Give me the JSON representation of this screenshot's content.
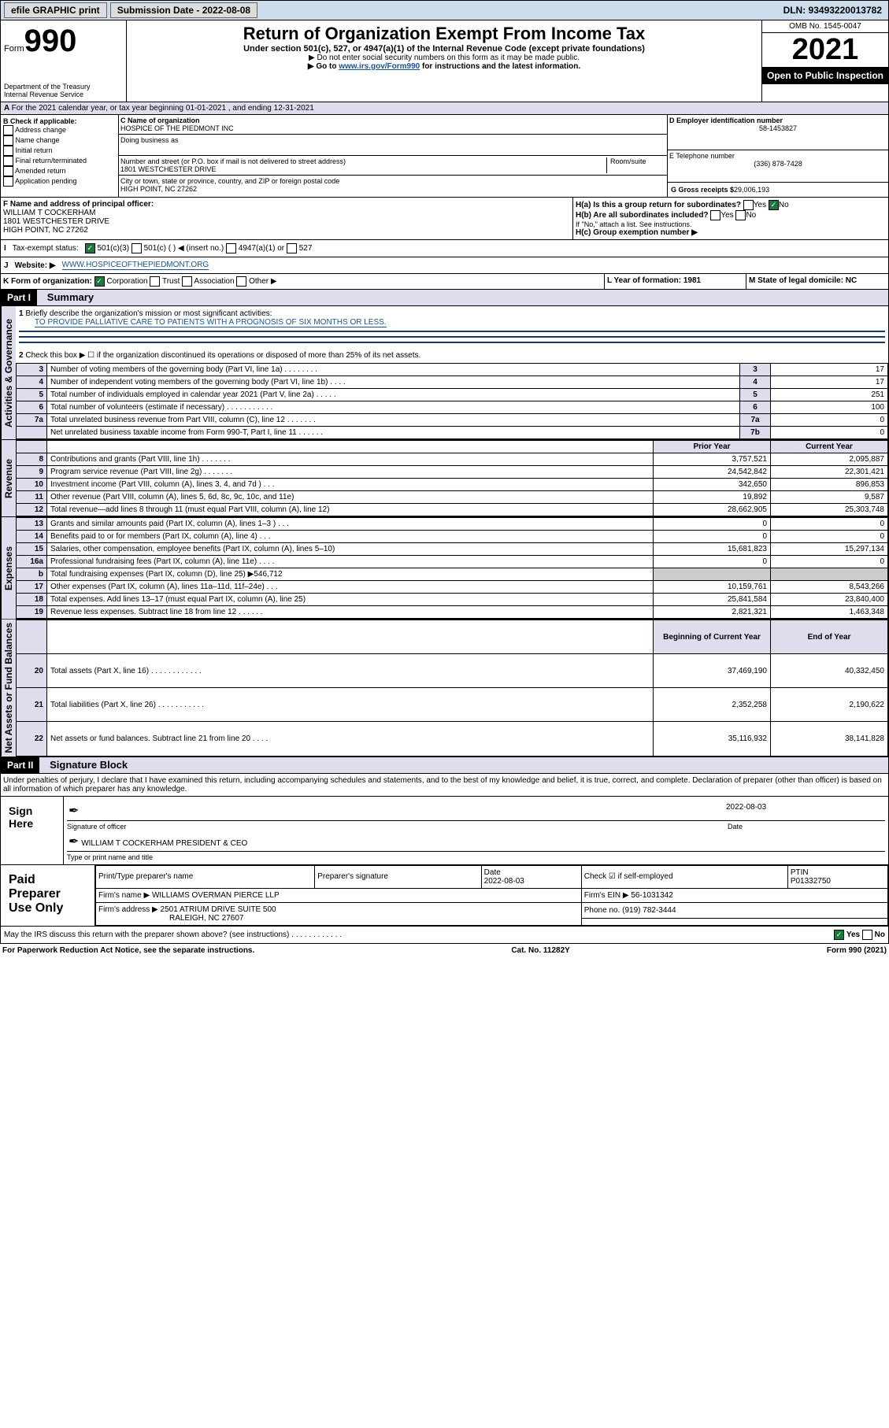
{
  "topbar": {
    "efile": "efile GRAPHIC print",
    "subdate_label": "Submission Date - 2022-08-08",
    "dln": "DLN: 93493220013782"
  },
  "header": {
    "form_prefix": "Form",
    "form_no": "990",
    "dept": "Department of the Treasury",
    "irs": "Internal Revenue Service",
    "title": "Return of Organization Exempt From Income Tax",
    "subtitle": "Under section 501(c), 527, or 4947(a)(1) of the Internal Revenue Code (except private foundations)",
    "note1": "▶ Do not enter social security numbers on this form as it may be made public.",
    "note2_pre": "▶ Go to ",
    "note2_link": "www.irs.gov/Form990",
    "note2_post": " for instructions and the latest information.",
    "omb": "OMB No. 1545-0047",
    "year": "2021",
    "openpub": "Open to Public Inspection"
  },
  "a_line": "For the 2021 calendar year, or tax year beginning 01-01-2021   , and ending 12-31-2021",
  "b": {
    "label": "B Check if applicable:",
    "opts": [
      "Address change",
      "Name change",
      "Initial return",
      "Final return/terminated",
      "Amended return",
      "Application pending"
    ]
  },
  "c": {
    "name_label": "C Name of organization",
    "name": "HOSPICE OF THE PIEDMONT INC",
    "dba_label": "Doing business as",
    "dba": "",
    "addr_label": "Number and street (or P.O. box if mail is not delivered to street address)",
    "room": "Room/suite",
    "addr": "1801 WESTCHESTER DRIVE",
    "city_label": "City or town, state or province, country, and ZIP or foreign postal code",
    "city": "HIGH POINT, NC  27262"
  },
  "d": {
    "label": "D Employer identification number",
    "val": "58-1453827"
  },
  "e": {
    "label": "E Telephone number",
    "val": "(336) 878-7428"
  },
  "g": {
    "label": "G Gross receipts $",
    "val": "29,006,193"
  },
  "f": {
    "label": "F Name and address of principal officer:",
    "name": "WILLIAM T COCKERHAM",
    "addr1": "1801 WESTCHESTER DRIVE",
    "addr2": "HIGH POINT, NC  27262"
  },
  "h": {
    "a_label": "H(a)  Is this a group return for subordinates?",
    "a_yes": "Yes",
    "a_no": "No",
    "b_label": "H(b)  Are all subordinates included?",
    "b_yes": "Yes",
    "b_no": "No",
    "b_note": "If \"No,\" attach a list. See instructions.",
    "c_label": "H(c)  Group exemption number ▶"
  },
  "i": {
    "label": "Tax-exempt status:",
    "opts": [
      "501(c)(3)",
      "501(c) (  ) ◀ (insert no.)",
      "4947(a)(1) or",
      "527"
    ]
  },
  "j": {
    "label": "J",
    "text": "Website: ▶",
    "url": "WWW.HOSPICEOFTHEPIEDMONT.ORG"
  },
  "k": {
    "label": "K Form of organization:",
    "opts": [
      "Corporation",
      "Trust",
      "Association",
      "Other ▶"
    ]
  },
  "l": {
    "label": "L Year of formation: 1981"
  },
  "m": {
    "label": "M State of legal domicile: NC"
  },
  "part1": {
    "label": "Part I",
    "title": "Summary"
  },
  "summary": {
    "q1": "Briefly describe the organization's mission or most significant activities:",
    "q1v": "TO PROVIDE PALLIATIVE CARE TO PATIENTS WITH A PROGNOSIS OF SIX MONTHS OR LESS.",
    "q2": "Check this box ▶ ☐  if the organization discontinued its operations or disposed of more than 25% of its net assets.",
    "rows": [
      {
        "n": "3",
        "d": "Number of voting members of the governing body (Part VI, line 1a)   .    .    .    .    .    .    .    .",
        "b": "3",
        "v": "17"
      },
      {
        "n": "4",
        "d": "Number of independent voting members of the governing body (Part VI, line 1b)   .    .    .    .",
        "b": "4",
        "v": "17"
      },
      {
        "n": "5",
        "d": "Total number of individuals employed in calendar year 2021 (Part V, line 2a)   .    .    .    .    .",
        "b": "5",
        "v": "251"
      },
      {
        "n": "6",
        "d": "Total number of volunteers (estimate if necessary)   .    .    .    .    .    .    .    .    .    .    .",
        "b": "6",
        "v": "100"
      },
      {
        "n": "7a",
        "d": "Total unrelated business revenue from Part VIII, column (C), line 12   .    .    .    .    .    .    .",
        "b": "7a",
        "v": "0"
      },
      {
        "n": "",
        "d": "Net unrelated business taxable income from Form 990-T, Part I, line 11   .    .    .    .    .    .",
        "b": "7b",
        "v": "0"
      }
    ],
    "colhdr": {
      "prior": "Prior Year",
      "current": "Current Year"
    },
    "revenue": [
      {
        "n": "8",
        "d": "Contributions and grants (Part VIII, line 1h)   .    .    .    .    .    .    .",
        "p": "3,757,521",
        "c": "2,095,887"
      },
      {
        "n": "9",
        "d": "Program service revenue (Part VIII, line 2g)   .    .    .    .    .    .    .",
        "p": "24,542,842",
        "c": "22,301,421"
      },
      {
        "n": "10",
        "d": "Investment income (Part VIII, column (A), lines 3, 4, and 7d )   .    .    .",
        "p": "342,650",
        "c": "896,853"
      },
      {
        "n": "11",
        "d": "Other revenue (Part VIII, column (A), lines 5, 6d, 8c, 9c, 10c, and 11e)",
        "p": "19,892",
        "c": "9,587"
      },
      {
        "n": "12",
        "d": "Total revenue—add lines 8 through 11 (must equal Part VIII, column (A), line 12)",
        "p": "28,662,905",
        "c": "25,303,748"
      }
    ],
    "expenses": [
      {
        "n": "13",
        "d": "Grants and similar amounts paid (Part IX, column (A), lines 1–3 )   .    .    .",
        "p": "0",
        "c": "0"
      },
      {
        "n": "14",
        "d": "Benefits paid to or for members (Part IX, column (A), line 4)   .    .    .",
        "p": "0",
        "c": "0"
      },
      {
        "n": "15",
        "d": "Salaries, other compensation, employee benefits (Part IX, column (A), lines 5–10)",
        "p": "15,681,823",
        "c": "15,297,134"
      },
      {
        "n": "16a",
        "d": "Professional fundraising fees (Part IX, column (A), line 11e)   .    .    .    .",
        "p": "0",
        "c": "0"
      },
      {
        "n": "b",
        "d": "Total fundraising expenses (Part IX, column (D), line 25) ▶546,712",
        "grey": true
      },
      {
        "n": "17",
        "d": "Other expenses (Part IX, column (A), lines 11a–11d, 11f–24e)   .    .    .",
        "p": "10,159,761",
        "c": "8,543,266"
      },
      {
        "n": "18",
        "d": "Total expenses. Add lines 13–17 (must equal Part IX, column (A), line 25)",
        "p": "25,841,584",
        "c": "23,840,400"
      },
      {
        "n": "19",
        "d": "Revenue less expenses. Subtract line 18 from line 12   .    .    .    .    .    .",
        "p": "2,821,321",
        "c": "1,463,348"
      }
    ],
    "nethdr": {
      "begin": "Beginning of Current Year",
      "end": "End of Year"
    },
    "net": [
      {
        "n": "20",
        "d": "Total assets (Part X, line 16)   .    .    .    .    .    .    .    .    .    .    .    .",
        "p": "37,469,190",
        "c": "40,332,450"
      },
      {
        "n": "21",
        "d": "Total liabilities (Part X, line 26)   .    .    .    .    .    .    .    .    .    .    .",
        "p": "2,352,258",
        "c": "2,190,622"
      },
      {
        "n": "22",
        "d": "Net assets or fund balances. Subtract line 21 from line 20   .    .    .    .",
        "p": "35,116,932",
        "c": "38,141,828"
      }
    ]
  },
  "sidelabels": {
    "gov": "Activities & Governance",
    "rev": "Revenue",
    "exp": "Expenses",
    "net": "Net Assets or Fund Balances"
  },
  "part2": {
    "label": "Part II",
    "title": "Signature Block"
  },
  "penalty": "Under penalties of perjury, I declare that I have examined this return, including accompanying schedules and statements, and to the best of my knowledge and belief, it is true, correct, and complete. Declaration of preparer (other than officer) is based on all information of which preparer has any knowledge.",
  "sign": {
    "here": "Sign Here",
    "sig_label": "Signature of officer",
    "date_label": "Date",
    "date": "2022-08-03",
    "name": "WILLIAM T COCKERHAM  PRESIDENT & CEO",
    "name_label": "Type or print name and title"
  },
  "preparer": {
    "title": "Paid Preparer Use Only",
    "h1": "Print/Type preparer's name",
    "h2": "Preparer's signature",
    "h3": "Date",
    "h3v": "2022-08-03",
    "h4": "Check ☑ if self-employed",
    "h5": "PTIN",
    "h5v": "P01332750",
    "firm_label": "Firm's name    ▶",
    "firm": "WILLIAMS OVERMAN PIERCE LLP",
    "ein_label": "Firm's EIN ▶",
    "ein": "56-1031342",
    "addr_label": "Firm's address ▶",
    "addr1": "2501 ATRIUM DRIVE SUITE 500",
    "addr2": "RALEIGH, NC  27607",
    "phone_label": "Phone no.",
    "phone": "(919) 782-3444"
  },
  "irs_q": "May the IRS discuss this return with the preparer shown above? (see instructions)   .    .    .    .    .    .    .    .    .    .    .    .",
  "irs_yes": "Yes",
  "irs_no": "No",
  "footer": {
    "left": "For Paperwork Reduction Act Notice, see the separate instructions.",
    "mid": "Cat. No. 11282Y",
    "right": "Form 990 (2021)"
  }
}
